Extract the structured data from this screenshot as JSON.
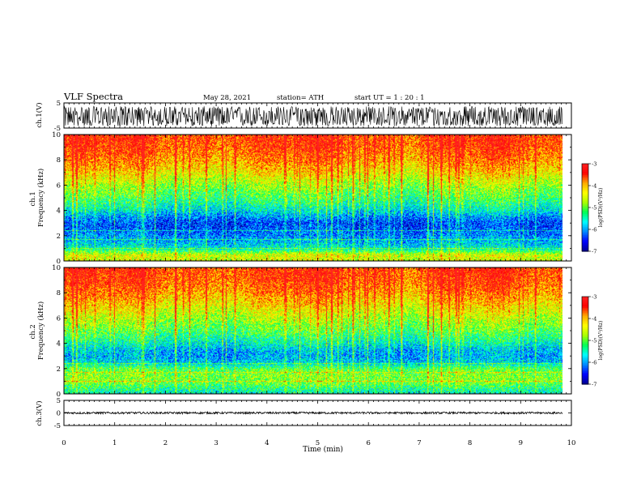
{
  "header": {
    "title": "VLF Spectra",
    "date": "May 28, 2021",
    "station": "station= ATH",
    "start": "start  UT =   1 : 20 : 1"
  },
  "chart_data": [
    {
      "type": "line",
      "panel": "ch1-waveform",
      "ylabel": "ch.1(V)",
      "ylim": [
        -5,
        5
      ],
      "yticks": [
        5,
        -5
      ],
      "xlim": [
        0,
        10
      ],
      "data_extent_min": [
        0,
        9.82
      ],
      "approx_range_v": [
        -4.2,
        4.6
      ],
      "baseline_v": -0.5,
      "line_color": "#000000"
    },
    {
      "type": "heatmap",
      "panel": "ch1-spectrogram",
      "ylabel": "ch.1\nFrequency (kHz)",
      "ylim": [
        0,
        10
      ],
      "yticks": [
        0,
        2,
        4,
        6,
        8,
        10
      ],
      "xlim": [
        0,
        10
      ],
      "data_extent_min": [
        0,
        9.82
      ],
      "estimated_log_psd_profile": [
        {
          "f_khz": 0.0,
          "log_psd": -4.6
        },
        {
          "f_khz": 0.5,
          "log_psd": -4.5
        },
        {
          "f_khz": 1.0,
          "log_psd": -5.6
        },
        {
          "f_khz": 1.5,
          "log_psd": -5.9
        },
        {
          "f_khz": 2.0,
          "log_psd": -6.1
        },
        {
          "f_khz": 2.5,
          "log_psd": -6.3
        },
        {
          "f_khz": 3.0,
          "log_psd": -6.4
        },
        {
          "f_khz": 3.5,
          "log_psd": -6.1
        },
        {
          "f_khz": 4.0,
          "log_psd": -5.7
        },
        {
          "f_khz": 5.0,
          "log_psd": -5.2
        },
        {
          "f_khz": 6.0,
          "log_psd": -4.8
        },
        {
          "f_khz": 7.0,
          "log_psd": -4.3
        },
        {
          "f_khz": 8.0,
          "log_psd": -3.9
        },
        {
          "f_khz": 9.0,
          "log_psd": -3.6
        },
        {
          "f_khz": 10.0,
          "log_psd": -3.5
        }
      ],
      "colorbar": {
        "label": "log(PSD)(V²/Hz)",
        "ticks": [
          -3,
          -4,
          -5,
          -6,
          -7
        ],
        "range": [
          -7,
          -3
        ]
      }
    },
    {
      "type": "heatmap",
      "panel": "ch2-spectrogram",
      "ylabel": "ch.2\nFrequency (kHz)",
      "ylim": [
        0,
        10
      ],
      "yticks": [
        0,
        2,
        4,
        6,
        8,
        10
      ],
      "xlim": [
        0,
        10
      ],
      "data_extent_min": [
        0,
        9.82
      ],
      "estimated_log_psd_profile": [
        {
          "f_khz": 0.0,
          "log_psd": -5.6
        },
        {
          "f_khz": 0.5,
          "log_psd": -5.3
        },
        {
          "f_khz": 1.0,
          "log_psd": -4.9
        },
        {
          "f_khz": 1.5,
          "log_psd": -4.9
        },
        {
          "f_khz": 2.0,
          "log_psd": -5.1
        },
        {
          "f_khz": 2.5,
          "log_psd": -5.8
        },
        {
          "f_khz": 3.0,
          "log_psd": -6.0
        },
        {
          "f_khz": 3.5,
          "log_psd": -5.9
        },
        {
          "f_khz": 4.0,
          "log_psd": -5.6
        },
        {
          "f_khz": 5.0,
          "log_psd": -5.1
        },
        {
          "f_khz": 6.0,
          "log_psd": -4.7
        },
        {
          "f_khz": 7.0,
          "log_psd": -4.3
        },
        {
          "f_khz": 8.0,
          "log_psd": -3.9
        },
        {
          "f_khz": 9.0,
          "log_psd": -3.6
        },
        {
          "f_khz": 10.0,
          "log_psd": -3.5
        }
      ],
      "colorbar": {
        "label": "log(PSD)(V²/Hz)",
        "ticks": [
          -3,
          -4,
          -5,
          -6,
          -7
        ],
        "range": [
          -7,
          -3
        ]
      }
    },
    {
      "type": "line",
      "panel": "ch3-waveform",
      "ylabel": "ch.3(V)",
      "ylim": [
        -5,
        5
      ],
      "yticks": [
        5,
        0,
        -5
      ],
      "xlim": [
        0,
        10
      ],
      "data_extent_min": [
        0,
        9.82
      ],
      "approx_range_v": [
        -0.4,
        0.4
      ],
      "baseline_v": 0.0,
      "line_color": "#000000"
    }
  ],
  "xaxis": {
    "label": "Time  (min)",
    "ticks": [
      0,
      1,
      2,
      3,
      4,
      5,
      6,
      7,
      8,
      9,
      10
    ]
  },
  "colors": {
    "colormap": [
      "#000090",
      "#0000ff",
      "#0088ff",
      "#00ffff",
      "#00ff55",
      "#aaff00",
      "#ffff00",
      "#ffaa00",
      "#ff0000",
      "#ff2222"
    ],
    "axis": "#000000",
    "background": "#ffffff"
  }
}
